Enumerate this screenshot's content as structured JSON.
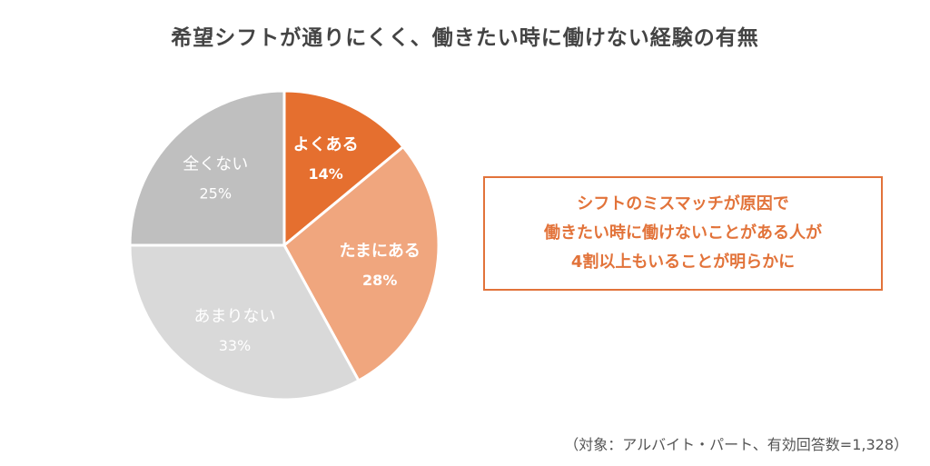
{
  "chart_data": {
    "type": "pie",
    "title": "希望シフトが通りにくく、働きたい時に働けない経験の有無",
    "slices": [
      {
        "label": "よくある",
        "value": 14,
        "value_label": "14%",
        "color": "#E56F2F",
        "text_color": "#ffffff",
        "bold": true
      },
      {
        "label": "たまにある",
        "value": 28,
        "value_label": "28%",
        "color": "#F0A67E",
        "text_color": "#ffffff",
        "bold": true
      },
      {
        "label": "あまりない",
        "value": 33,
        "value_label": "33%",
        "color": "#D9D9D9",
        "text_color": "#ffffff",
        "bold": false
      },
      {
        "label": "全くない",
        "value": 25,
        "value_label": "25%",
        "color": "#BFBFBF",
        "text_color": "#ffffff",
        "bold": false
      }
    ]
  },
  "callout": {
    "lines": [
      "シフトのミスマッチが原因で",
      "働きたい時に働けないことがある人が",
      "4割以上もいることが明らかに"
    ]
  },
  "note": "（対象：アルバイト・パート、有効回答数=1,328）"
}
